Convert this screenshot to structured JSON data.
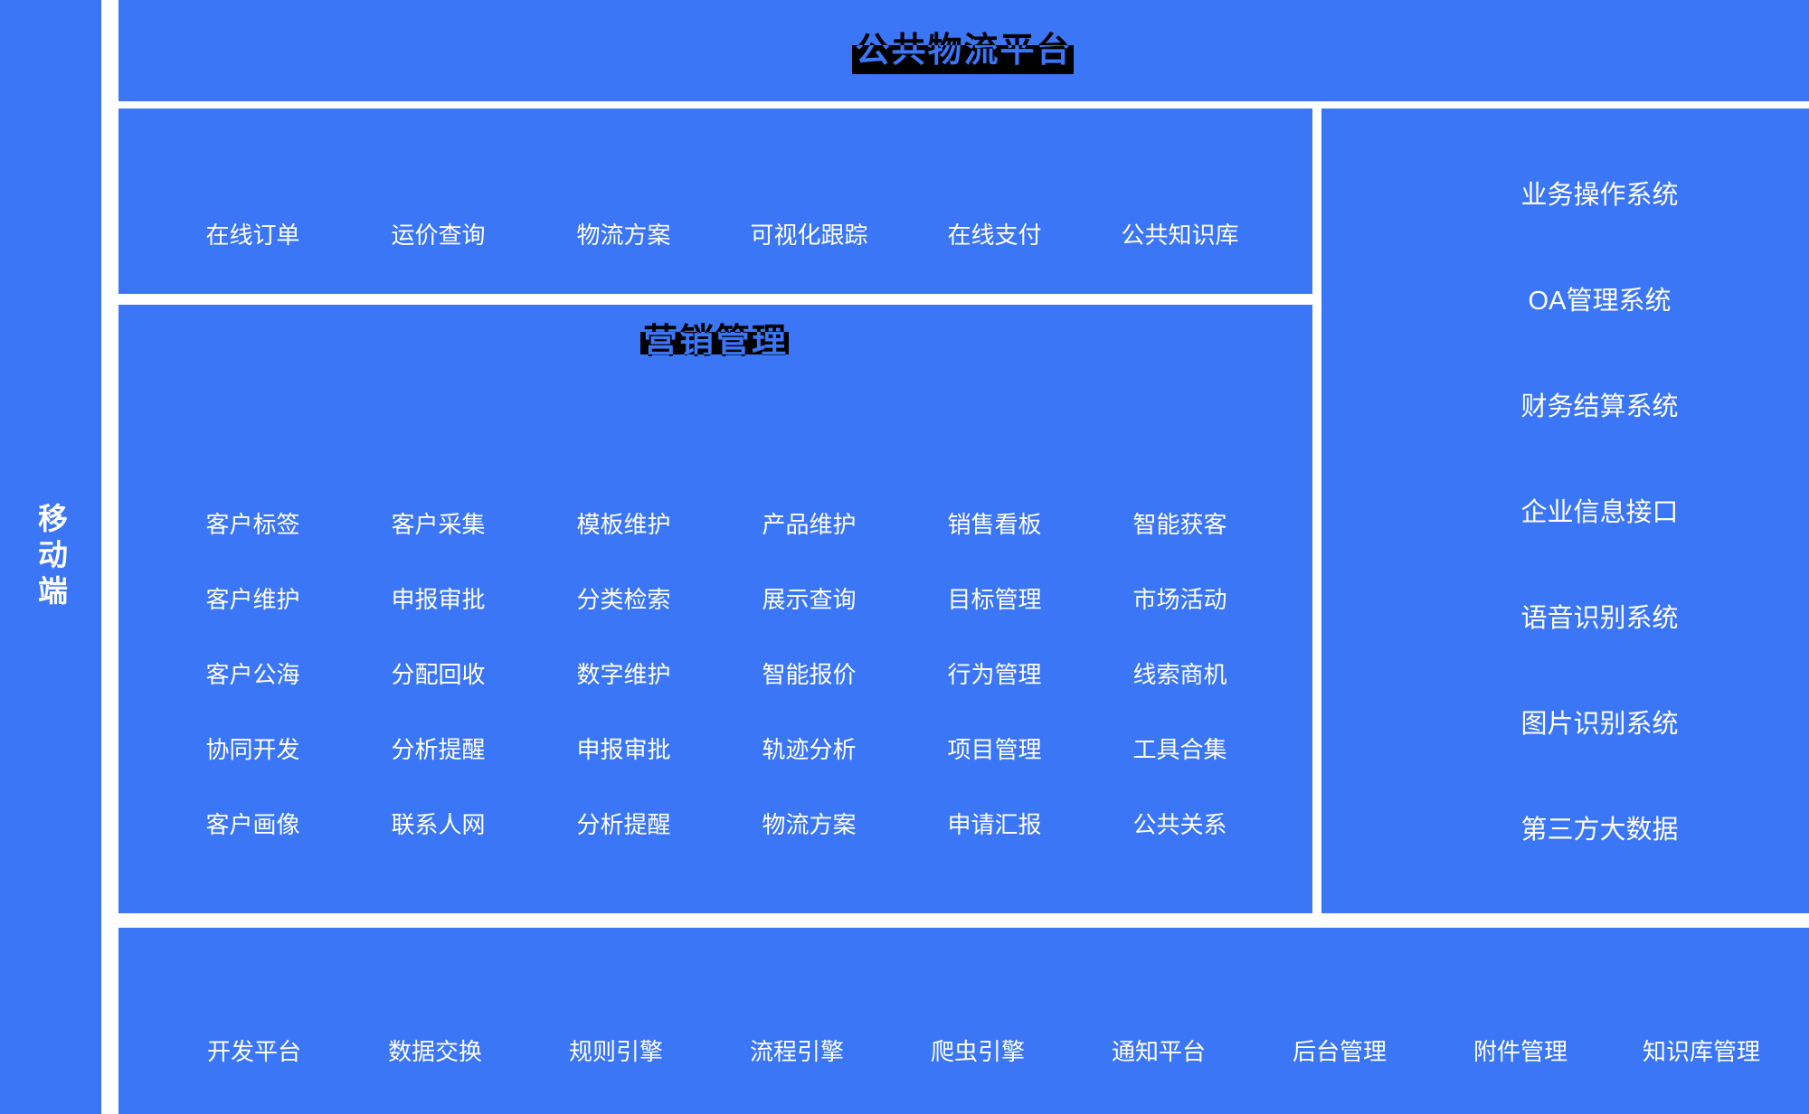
{
  "colors": {
    "panel_blue": "#3b76f7",
    "item_text": "#ffffff",
    "title_highlight": "#000000",
    "page_background": "#ffffff"
  },
  "sidebar": {
    "label": "移动端"
  },
  "banner": {
    "title": "公共物流平台"
  },
  "public_services": {
    "items": [
      "在线订单",
      "运价查询",
      "物流方案",
      "可视化跟踪",
      "在线支付",
      "公共知识库"
    ]
  },
  "marketing": {
    "title": "营销管理",
    "rows": [
      [
        "客户标签",
        "客户采集",
        "模板维护",
        "产品维护",
        "销售看板",
        "智能获客"
      ],
      [
        "客户维护",
        "申报审批",
        "分类检索",
        "展示查询",
        "目标管理",
        "市场活动"
      ],
      [
        "客户公海",
        "分配回收",
        "数字维护",
        "智能报价",
        "行为管理",
        "线索商机"
      ],
      [
        "协同开发",
        "分析提醒",
        "申报审批",
        "轨迹分析",
        "项目管理",
        "工具合集"
      ],
      [
        "客户画像",
        "联系人网",
        "分析提醒",
        "物流方案",
        "申请汇报",
        "公共关系"
      ]
    ]
  },
  "systems": {
    "items": [
      "业务操作系统",
      "OA管理系统",
      "财务结算系统",
      "企业信息接口",
      "语音识别系统",
      "图片识别系统",
      "第三方大数据"
    ]
  },
  "platform": {
    "items": [
      "开发平台",
      "数据交换",
      "规则引擎",
      "流程引擎",
      "爬虫引擎",
      "通知平台",
      "后台管理",
      "附件管理",
      "知识库管理"
    ]
  }
}
